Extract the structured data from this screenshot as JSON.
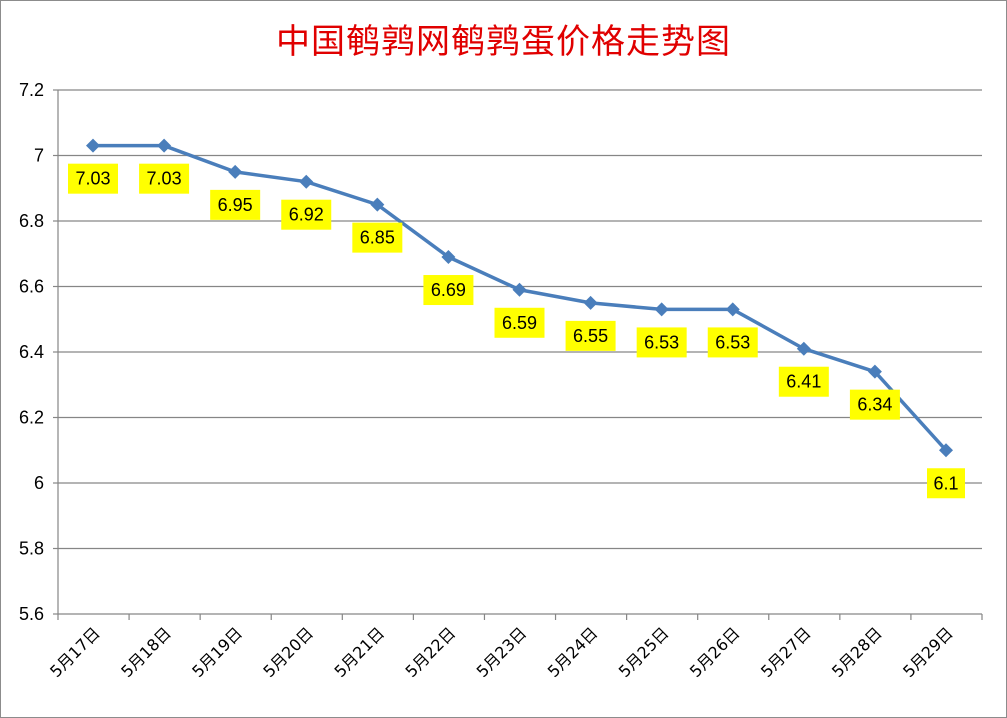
{
  "chart_data": {
    "type": "line",
    "title": "中国鹌鹑网鹌鹑蛋价格走势图",
    "xlabel": "",
    "ylabel": "",
    "categories": [
      "5月17日",
      "5月18日",
      "5月19日",
      "5月20日",
      "5月21日",
      "5月22日",
      "5月23日",
      "5月24日",
      "5月25日",
      "5月26日",
      "5月27日",
      "5月28日",
      "5月29日"
    ],
    "values": [
      7.03,
      7.03,
      6.95,
      6.92,
      6.85,
      6.69,
      6.59,
      6.55,
      6.53,
      6.53,
      6.41,
      6.34,
      6.1
    ],
    "data_labels": [
      "7.03",
      "7.03",
      "6.95",
      "6.92",
      "6.85",
      "6.69",
      "6.59",
      "6.55",
      "6.53",
      "6.53",
      "6.41",
      "6.34",
      "6.1"
    ],
    "ylim": [
      5.6,
      7.2
    ],
    "yticks": [
      "5.6",
      "5.8",
      "6",
      "6.2",
      "6.4",
      "6.6",
      "6.8",
      "7",
      "7.2"
    ],
    "ytick_values": [
      5.6,
      5.8,
      6.0,
      6.2,
      6.4,
      6.6,
      6.8,
      7.0,
      7.2
    ],
    "grid": true,
    "legend": "none",
    "colors": {
      "line": "#4a7ebb",
      "marker": "#4a7ebb",
      "label_bg": "#ffff00",
      "title": "#e00000",
      "grid": "#868686"
    }
  }
}
